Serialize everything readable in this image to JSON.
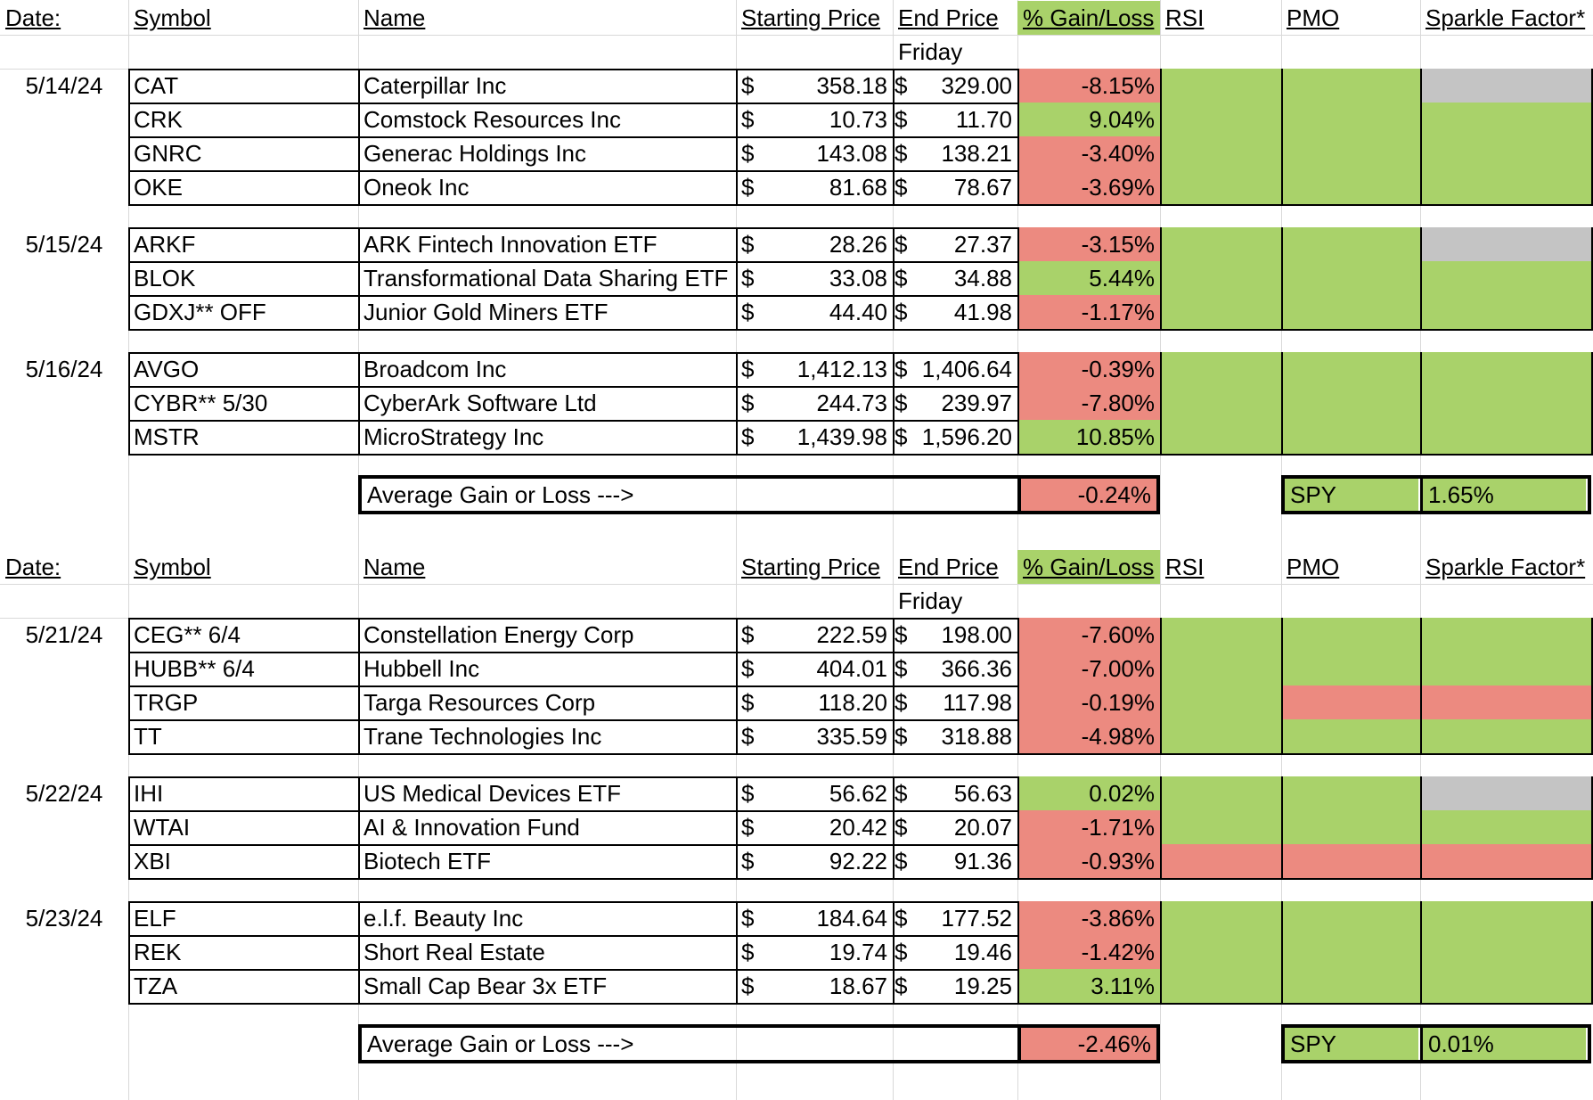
{
  "colors": {
    "green": "#a9d26a",
    "red": "#ec8a80",
    "gray": "#c4c4c4"
  },
  "sections": [
    {
      "headers": {
        "date": "Date:",
        "symbol": "Symbol",
        "name": "Name",
        "start": "Starting Price",
        "end": "End Price",
        "pct": "% Gain/Loss",
        "rsi": "RSI",
        "pmo": "PMO",
        "sparkle": "Sparkle Factor*"
      },
      "subheader": "Friday",
      "groups": [
        {
          "date": "5/14/24",
          "rows": [
            {
              "symbol": "CAT",
              "name": "Caterpillar Inc",
              "sd": "$",
              "start": "358.18",
              "ed": "$",
              "end": "329.00",
              "pct": "-8.15%",
              "pct_color": "red",
              "rsi": "green",
              "pmo": "green",
              "sparkle": "gray"
            },
            {
              "symbol": "CRK",
              "name": "Comstock Resources Inc",
              "sd": "$",
              "start": "10.73",
              "ed": "$",
              "end": "11.70",
              "pct": "9.04%",
              "pct_color": "green",
              "rsi": "green",
              "pmo": "green",
              "sparkle": "green"
            },
            {
              "symbol": "GNRC",
              "name": "Generac Holdings Inc",
              "sd": "$",
              "start": "143.08",
              "ed": "$",
              "end": "138.21",
              "pct": "-3.40%",
              "pct_color": "red",
              "rsi": "green",
              "pmo": "green",
              "sparkle": "green"
            },
            {
              "symbol": "OKE",
              "name": "Oneok Inc",
              "sd": "$",
              "start": "81.68",
              "ed": "$",
              "end": "78.67",
              "pct": "-3.69%",
              "pct_color": "red",
              "rsi": "green",
              "pmo": "green",
              "sparkle": "green"
            }
          ]
        },
        {
          "date": "5/15/24",
          "rows": [
            {
              "symbol": "ARKF",
              "name": "ARK Fintech Innovation ETF",
              "sd": "$",
              "start": "28.26",
              "ed": "$",
              "end": "27.37",
              "pct": "-3.15%",
              "pct_color": "red",
              "rsi": "green",
              "pmo": "green",
              "sparkle": "gray"
            },
            {
              "symbol": "BLOK",
              "name": "Transformational Data Sharing ETF",
              "sd": "$",
              "start": "33.08",
              "ed": "$",
              "end": "34.88",
              "pct": "5.44%",
              "pct_color": "green",
              "rsi": "green",
              "pmo": "green",
              "sparkle": "green"
            },
            {
              "symbol": "GDXJ** OFF",
              "name": "Junior Gold Miners ETF",
              "sd": "$",
              "start": "44.40",
              "ed": "$",
              "end": "41.98",
              "pct": "-1.17%",
              "pct_color": "red",
              "rsi": "green",
              "pmo": "green",
              "sparkle": "green"
            }
          ]
        },
        {
          "date": "5/16/24",
          "rows": [
            {
              "symbol": "AVGO",
              "name": "Broadcom Inc",
              "sd": "$",
              "start": "1,412.13",
              "ed": "$",
              "end": "1,406.64",
              "pct": "-0.39%",
              "pct_color": "red",
              "rsi": "green",
              "pmo": "green",
              "sparkle": "green"
            },
            {
              "symbol": "CYBR** 5/30",
              "name": "CyberArk Software Ltd",
              "sd": "$",
              "start": "244.73",
              "ed": "$",
              "end": "239.97",
              "pct": "-7.80%",
              "pct_color": "red",
              "rsi": "green",
              "pmo": "green",
              "sparkle": "green"
            },
            {
              "symbol": "MSTR",
              "name": "MicroStrategy Inc",
              "sd": "$",
              "start": "1,439.98",
              "ed": "$",
              "end": "1,596.20",
              "pct": "10.85%",
              "pct_color": "green",
              "rsi": "green",
              "pmo": "green",
              "sparkle": "green"
            }
          ]
        }
      ],
      "average": {
        "label": "Average Gain or Loss --->",
        "value": "-0.24%",
        "value_color": "red",
        "spy_label": "SPY",
        "spy_value": "1.65%"
      }
    },
    {
      "headers": {
        "date": "Date:",
        "symbol": "Symbol",
        "name": "Name",
        "start": "Starting Price",
        "end": "End Price",
        "pct": "% Gain/Loss",
        "rsi": "RSI",
        "pmo": "PMO",
        "sparkle": "Sparkle Factor*"
      },
      "subheader": "Friday",
      "groups": [
        {
          "date": "5/21/24",
          "rows": [
            {
              "symbol": "CEG** 6/4",
              "name": "Constellation Energy Corp",
              "sd": "$",
              "start": "222.59",
              "ed": "$",
              "end": "198.00",
              "pct": "-7.60%",
              "pct_color": "red",
              "rsi": "green",
              "pmo": "green",
              "sparkle": "green"
            },
            {
              "symbol": "HUBB** 6/4",
              "name": "Hubbell Inc",
              "sd": "$",
              "start": "404.01",
              "ed": "$",
              "end": "366.36",
              "pct": "-7.00%",
              "pct_color": "red",
              "rsi": "green",
              "pmo": "green",
              "sparkle": "green"
            },
            {
              "symbol": "TRGP",
              "name": "Targa Resources Corp",
              "sd": "$",
              "start": "118.20",
              "ed": "$",
              "end": "117.98",
              "pct": "-0.19%",
              "pct_color": "red",
              "rsi": "green",
              "pmo": "red",
              "sparkle": "red"
            },
            {
              "symbol": "TT",
              "name": "Trane Technologies Inc",
              "sd": "$",
              "start": "335.59",
              "ed": "$",
              "end": "318.88",
              "pct": "-4.98%",
              "pct_color": "red",
              "rsi": "green",
              "pmo": "green",
              "sparkle": "green"
            }
          ]
        },
        {
          "date": "5/22/24",
          "rows": [
            {
              "symbol": "IHI",
              "name": "US Medical Devices ETF",
              "sd": "$",
              "start": "56.62",
              "ed": "$",
              "end": "56.63",
              "pct": "0.02%",
              "pct_color": "green",
              "rsi": "green",
              "pmo": "green",
              "sparkle": "gray"
            },
            {
              "symbol": "WTAI",
              "name": "AI & Innovation Fund",
              "sd": "$",
              "start": "20.42",
              "ed": "$",
              "end": "20.07",
              "pct": "-1.71%",
              "pct_color": "red",
              "rsi": "green",
              "pmo": "green",
              "sparkle": "green"
            },
            {
              "symbol": "XBI",
              "name": "Biotech ETF",
              "sd": "$",
              "start": "92.22",
              "ed": "$",
              "end": "91.36",
              "pct": "-0.93%",
              "pct_color": "red",
              "rsi": "red",
              "pmo": "red",
              "sparkle": "red"
            }
          ]
        },
        {
          "date": "5/23/24",
          "rows": [
            {
              "symbol": "ELF",
              "name": "e.l.f. Beauty Inc",
              "sd": "$",
              "start": "184.64",
              "ed": "$",
              "end": "177.52",
              "pct": "-3.86%",
              "pct_color": "red",
              "rsi": "green",
              "pmo": "green",
              "sparkle": "green"
            },
            {
              "symbol": "REK",
              "name": "Short Real Estate",
              "sd": "$",
              "start": "19.74",
              "ed": "$",
              "end": "19.46",
              "pct": "-1.42%",
              "pct_color": "red",
              "rsi": "green",
              "pmo": "green",
              "sparkle": "green"
            },
            {
              "symbol": "TZA",
              "name": "Small Cap Bear 3x ETF",
              "sd": "$",
              "start": "18.67",
              "ed": "$",
              "end": "19.25",
              "pct": "3.11%",
              "pct_color": "green",
              "rsi": "green",
              "pmo": "green",
              "sparkle": "green"
            }
          ]
        }
      ],
      "average": {
        "label": "Average Gain or Loss --->",
        "value": "-2.46%",
        "value_color": "red",
        "spy_label": "SPY",
        "spy_value": "0.01%"
      }
    }
  ]
}
